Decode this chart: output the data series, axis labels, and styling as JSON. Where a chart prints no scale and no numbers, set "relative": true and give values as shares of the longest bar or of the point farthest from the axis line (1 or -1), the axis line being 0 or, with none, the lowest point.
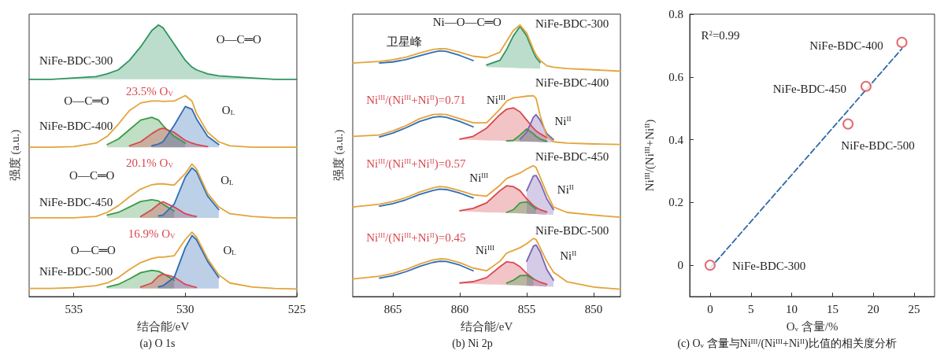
{
  "chart_data": [
    {
      "type": "line",
      "relative": true,
      "title": "(a) O 1s",
      "xlabel": "结合能/eV",
      "ylabel": "强度 (a.u.)",
      "tick_labels": "x",
      "xlim": [
        537,
        525
      ],
      "xticks": [
        535,
        530,
        525
      ],
      "x": [
        537,
        536,
        535,
        534,
        533.5,
        533,
        532.5,
        532,
        531.5,
        531.2,
        531,
        530.5,
        530,
        529.7,
        529.5,
        529,
        528.5,
        528,
        527,
        526,
        525
      ],
      "series": [
        {
          "color": "#2f9460",
          "values": [
            0.8,
            0.8,
            0.805,
            0.81,
            0.82,
            0.835,
            0.87,
            0.92,
            0.98,
            1.0,
            0.99,
            0.93,
            0.87,
            0.845,
            0.835,
            0.82,
            0.813,
            0.81,
            0.805,
            0.8,
            0.8
          ],
          "lower": [
            0.8,
            0.8,
            0.8,
            0.8,
            0.8,
            0.8,
            0.8,
            0.8,
            0.8,
            0.8,
            0.8,
            0.8,
            0.8,
            0.8,
            0.8,
            0.8,
            0.8,
            0.8,
            0.8,
            0.8,
            0.8
          ],
          "upper": [
            0.8,
            0.8,
            0.805,
            0.81,
            0.82,
            0.835,
            0.87,
            0.92,
            0.98,
            1.0,
            0.99,
            0.93,
            0.87,
            0.845,
            0.835,
            0.82,
            0.813,
            0.81,
            0.805,
            0.8,
            0.8
          ]
        },
        {
          "color": "#3c9a46",
          "values": [
            null,
            null,
            null,
            null,
            0.56,
            0.58,
            0.615,
            0.65,
            0.66,
            0.65,
            0.63,
            0.59,
            0.565,
            null,
            null,
            null,
            null,
            null,
            null,
            null,
            null
          ],
          "lower": [
            null,
            null,
            null,
            null,
            0.55,
            0.55,
            0.55,
            0.55,
            0.55,
            0.55,
            0.55,
            0.55,
            0.55,
            null,
            null,
            null,
            null,
            null,
            null,
            null,
            null
          ],
          "upper": [
            null,
            null,
            null,
            null,
            0.56,
            0.58,
            0.615,
            0.65,
            0.66,
            0.65,
            0.63,
            0.59,
            0.565,
            null,
            null,
            null,
            null,
            null,
            null,
            null,
            null
          ]
        },
        {
          "color": "#d9474f",
          "values": [
            null,
            null,
            null,
            null,
            null,
            null,
            0.555,
            0.57,
            0.6,
            0.615,
            0.62,
            0.605,
            0.575,
            0.565,
            0.56,
            0.552,
            null,
            null,
            null,
            null,
            null
          ],
          "lower": [
            null,
            null,
            null,
            null,
            null,
            null,
            0.55,
            0.55,
            0.55,
            0.55,
            0.55,
            0.55,
            0.55,
            0.55,
            0.55,
            0.55,
            null,
            null,
            null,
            null,
            null
          ],
          "upper": [
            null,
            null,
            null,
            null,
            null,
            null,
            0.555,
            0.57,
            0.6,
            0.615,
            0.62,
            0.605,
            0.575,
            0.565,
            0.56,
            0.552,
            null,
            null,
            null,
            null,
            null
          ]
        },
        {
          "color": "#2f6db4",
          "values": [
            null,
            null,
            null,
            null,
            null,
            null,
            null,
            null,
            0.555,
            0.562,
            0.57,
            0.63,
            0.7,
            0.69,
            0.655,
            0.59,
            0.56,
            null,
            null,
            null,
            null
          ],
          "lower": [
            null,
            null,
            null,
            null,
            null,
            null,
            null,
            null,
            0.55,
            0.55,
            0.55,
            0.55,
            0.55,
            0.55,
            0.55,
            0.55,
            0.55,
            null,
            null,
            null,
            null
          ],
          "upper": [
            null,
            null,
            null,
            null,
            null,
            null,
            null,
            null,
            0.555,
            0.562,
            0.57,
            0.63,
            0.7,
            0.69,
            0.655,
            0.59,
            0.56,
            null,
            null,
            null,
            null
          ]
        },
        {
          "color": "#e3a33b",
          "values": [
            0.55,
            0.55,
            0.552,
            0.565,
            0.59,
            0.635,
            0.685,
            0.713,
            0.72,
            0.72,
            0.719,
            0.72,
            0.74,
            0.72,
            0.675,
            0.605,
            0.57,
            0.555,
            0.55,
            0.55,
            0.55
          ]
        },
        {
          "color": "#3e9c48",
          "values": [
            null,
            null,
            null,
            null,
            0.3,
            0.31,
            0.33,
            0.35,
            0.357,
            0.352,
            0.34,
            0.315,
            null,
            null,
            null,
            null,
            null,
            null,
            null,
            null,
            null
          ],
          "lower": [
            null,
            null,
            null,
            null,
            0.29,
            0.29,
            0.29,
            0.29,
            0.29,
            0.29,
            0.29,
            0.29,
            null,
            null,
            null,
            null,
            null,
            null,
            null,
            null,
            null
          ],
          "upper": [
            null,
            null,
            null,
            null,
            0.3,
            0.31,
            0.33,
            0.35,
            0.357,
            0.352,
            0.34,
            0.315,
            null,
            null,
            null,
            null,
            null,
            null,
            null,
            null,
            null
          ]
        },
        {
          "color": "#d7464e",
          "values": [
            null,
            null,
            null,
            null,
            null,
            null,
            null,
            0.295,
            0.32,
            0.34,
            0.349,
            0.33,
            0.305,
            0.298,
            0.295,
            null,
            null,
            null,
            null,
            null,
            null
          ],
          "lower": [
            null,
            null,
            null,
            null,
            null,
            null,
            null,
            0.29,
            0.29,
            0.29,
            0.29,
            0.29,
            0.29,
            0.29,
            0.29,
            null,
            null,
            null,
            null,
            null,
            null
          ],
          "upper": [
            null,
            null,
            null,
            null,
            null,
            null,
            null,
            0.295,
            0.32,
            0.34,
            0.349,
            0.33,
            0.305,
            0.298,
            0.295,
            null,
            null,
            null,
            null,
            null,
            null
          ]
        },
        {
          "color": "#3070b6",
          "values": [
            null,
            null,
            null,
            null,
            null,
            null,
            null,
            null,
            null,
            0.297,
            0.3,
            0.34,
            0.44,
            0.474,
            0.46,
            0.37,
            0.32,
            null,
            null,
            null,
            null
          ],
          "lower": [
            null,
            null,
            null,
            null,
            null,
            null,
            null,
            null,
            null,
            0.29,
            0.29,
            0.29,
            0.29,
            0.29,
            0.29,
            0.29,
            0.29,
            null,
            null,
            null,
            null
          ],
          "upper": [
            null,
            null,
            null,
            null,
            null,
            null,
            null,
            null,
            null,
            0.297,
            0.3,
            0.34,
            0.44,
            0.474,
            0.46,
            0.37,
            0.32,
            null,
            null,
            null,
            null
          ]
        },
        {
          "color": "#e3a33b",
          "values": [
            0.29,
            0.29,
            0.29,
            0.295,
            0.31,
            0.335,
            0.367,
            0.396,
            0.412,
            0.415,
            0.415,
            0.41,
            0.453,
            0.488,
            0.47,
            0.38,
            0.33,
            0.305,
            0.295,
            0.29,
            0.29
          ]
        },
        {
          "color": "#3a9844",
          "values": [
            null,
            null,
            null,
            null,
            0.035,
            0.045,
            0.065,
            0.088,
            0.097,
            0.093,
            0.085,
            0.06,
            null,
            null,
            null,
            null,
            null,
            null,
            null,
            null,
            null
          ],
          "lower": [
            null,
            null,
            null,
            null,
            0.03,
            0.03,
            0.03,
            0.03,
            0.03,
            0.03,
            0.03,
            0.03,
            null,
            null,
            null,
            null,
            null,
            null,
            null,
            null,
            null
          ],
          "upper": [
            null,
            null,
            null,
            null,
            0.035,
            0.045,
            0.065,
            0.088,
            0.097,
            0.093,
            0.085,
            0.06,
            null,
            null,
            null,
            null,
            null,
            null,
            null,
            null,
            null
          ]
        },
        {
          "color": "#db4951",
          "values": [
            null,
            null,
            null,
            null,
            null,
            null,
            null,
            0.035,
            0.05,
            0.075,
            0.083,
            0.072,
            0.045,
            0.038,
            0.034,
            null,
            null,
            null,
            null,
            null,
            null
          ],
          "lower": [
            null,
            null,
            null,
            null,
            null,
            null,
            null,
            0.03,
            0.03,
            0.03,
            0.03,
            0.03,
            0.03,
            0.03,
            0.03,
            null,
            null,
            null,
            null,
            null,
            null
          ],
          "upper": [
            null,
            null,
            null,
            null,
            null,
            null,
            null,
            0.035,
            0.05,
            0.075,
            0.083,
            0.072,
            0.045,
            0.038,
            0.034,
            null,
            null,
            null,
            null,
            null,
            null
          ]
        },
        {
          "color": "#2e6bb2",
          "values": [
            null,
            null,
            null,
            null,
            null,
            null,
            null,
            null,
            null,
            0.036,
            0.04,
            0.07,
            0.18,
            0.225,
            0.21,
            0.13,
            0.07,
            null,
            null,
            null,
            null
          ],
          "lower": [
            null,
            null,
            null,
            null,
            null,
            null,
            null,
            null,
            null,
            0.03,
            0.03,
            0.03,
            0.03,
            0.03,
            0.03,
            0.03,
            0.03,
            null,
            null,
            null,
            null
          ],
          "upper": [
            null,
            null,
            null,
            null,
            null,
            null,
            null,
            null,
            null,
            0.036,
            0.04,
            0.07,
            0.18,
            0.225,
            0.21,
            0.13,
            0.07,
            null,
            null,
            null,
            null
          ]
        },
        {
          "color": "#e3a33b",
          "values": [
            0.03,
            0.03,
            0.033,
            0.04,
            0.05,
            0.07,
            0.1,
            0.125,
            0.14,
            0.145,
            0.145,
            0.15,
            0.21,
            0.237,
            0.22,
            0.14,
            0.08,
            0.05,
            0.035,
            0.03,
            0.028
          ]
        }
      ],
      "annotations": [
        "NiFe-BDC-300",
        "O—C═O",
        "NiFe-BDC-400",
        "O—C═O",
        "23.5% O$_{V}$",
        "O$_{L}$",
        "NiFe-BDC-450",
        "O—C═O",
        "20.1% O$_{V}$",
        "O$_{L}$",
        "NiFe-BDC-500",
        "O—C═O",
        "16.9% O$_{V}$",
        "O$_{L}$"
      ]
    },
    {
      "type": "line",
      "relative": true,
      "title": "(b) Ni 2p",
      "xlabel": "结合能/eV",
      "ylabel": "强度 (a.u.)",
      "tick_labels": "x",
      "xlim": [
        868,
        848
      ],
      "xticks": [
        865,
        860,
        855,
        850
      ],
      "x": [
        868,
        866,
        865,
        864,
        863,
        862,
        861.5,
        861,
        860,
        859,
        858,
        857,
        856.5,
        856,
        855.5,
        855,
        854.5,
        854.3,
        854,
        853.5,
        853,
        852,
        850,
        848
      ],
      "series": [
        {
          "color": "#2f9460",
          "values": [
            null,
            null,
            null,
            null,
            null,
            null,
            null,
            null,
            null,
            null,
            0.853,
            0.87,
            0.91,
            0.96,
            0.995,
            0.96,
            0.9,
            0.88,
            0.862,
            null,
            null,
            null,
            null,
            null
          ],
          "lower": [
            null,
            null,
            null,
            null,
            null,
            null,
            null,
            null,
            null,
            null,
            0.845,
            0.844,
            0.843,
            0.842,
            0.841,
            0.841,
            0.84,
            0.84,
            0.839,
            null,
            null,
            null,
            null,
            null
          ],
          "upper": [
            null,
            null,
            null,
            null,
            null,
            null,
            null,
            null,
            null,
            null,
            0.853,
            0.87,
            0.91,
            0.96,
            0.995,
            0.96,
            0.9,
            0.88,
            0.862,
            null,
            null,
            null,
            null,
            null
          ]
        },
        {
          "color": "#2f6db4",
          "values": [
            null,
            0.86,
            0.864,
            0.873,
            0.887,
            0.9,
            0.905,
            0.903,
            0.888,
            0.869,
            null,
            null,
            null,
            null,
            null,
            null,
            null,
            null,
            null,
            null,
            null,
            null,
            null,
            null
          ]
        },
        {
          "color": "#e3a33b",
          "values": [
            0.86,
            0.866,
            0.872,
            0.882,
            0.897,
            0.91,
            0.913,
            0.912,
            0.9,
            0.885,
            0.88,
            0.9,
            0.94,
            0.98,
            1.0,
            0.97,
            0.91,
            0.89,
            0.87,
            0.85,
            0.845,
            0.84,
            0.835,
            0.83
          ]
        },
        {
          "color": "#d9474f",
          "values": [
            null,
            null,
            null,
            null,
            null,
            null,
            null,
            null,
            0.58,
            0.59,
            0.62,
            0.67,
            0.69,
            0.695,
            0.68,
            0.65,
            0.62,
            0.61,
            0.6,
            0.585,
            null,
            null,
            null,
            null
          ],
          "lower": [
            null,
            null,
            null,
            null,
            null,
            null,
            null,
            null,
            0.578,
            0.577,
            0.575,
            0.574,
            0.573,
            0.572,
            0.571,
            0.571,
            0.57,
            0.57,
            0.569,
            0.568,
            null,
            null,
            null,
            null
          ],
          "upper": [
            null,
            null,
            null,
            null,
            null,
            null,
            null,
            null,
            0.58,
            0.59,
            0.62,
            0.67,
            0.69,
            0.695,
            0.68,
            0.65,
            0.62,
            0.61,
            0.6,
            0.585,
            null,
            null,
            null,
            null
          ]
        },
        {
          "color": "#3c9a46",
          "values": [
            null,
            null,
            null,
            null,
            null,
            null,
            null,
            null,
            null,
            null,
            null,
            null,
            0.573,
            0.575,
            0.595,
            0.617,
            0.6,
            0.59,
            0.58,
            0.572,
            null,
            null,
            null,
            null
          ],
          "lower": [
            null,
            null,
            null,
            null,
            null,
            null,
            null,
            null,
            null,
            null,
            null,
            null,
            0.573,
            0.572,
            0.571,
            0.571,
            0.57,
            0.57,
            0.569,
            0.568,
            null,
            null,
            null,
            null
          ],
          "upper": [
            null,
            null,
            null,
            null,
            null,
            null,
            null,
            null,
            null,
            null,
            null,
            null,
            0.573,
            0.575,
            0.595,
            0.617,
            0.6,
            0.59,
            0.58,
            0.572,
            null,
            null,
            null,
            null
          ]
        },
        {
          "color": "#7b62b3",
          "values": [
            null,
            null,
            null,
            null,
            null,
            null,
            null,
            null,
            null,
            null,
            null,
            null,
            null,
            null,
            0.58,
            0.605,
            0.66,
            0.67,
            0.65,
            0.6,
            0.578,
            null,
            null,
            null
          ],
          "lower": [
            null,
            null,
            null,
            null,
            null,
            null,
            null,
            null,
            null,
            null,
            null,
            null,
            null,
            null,
            0.571,
            0.571,
            0.57,
            0.57,
            0.569,
            0.568,
            0.568,
            null,
            null,
            null
          ],
          "upper": [
            null,
            null,
            null,
            null,
            null,
            null,
            null,
            null,
            null,
            null,
            null,
            null,
            null,
            null,
            0.58,
            0.605,
            0.66,
            0.67,
            0.65,
            0.6,
            0.578,
            null,
            null,
            null
          ]
        },
        {
          "color": "#2f6db4",
          "values": [
            null,
            0.588,
            0.602,
            0.622,
            0.645,
            0.66,
            0.663,
            0.66,
            0.645,
            0.625,
            null,
            null,
            null,
            null,
            null,
            null,
            null,
            null,
            null,
            null,
            null,
            null,
            null,
            null
          ]
        },
        {
          "color": "#e3a33b",
          "values": [
            0.59,
            0.595,
            0.61,
            0.63,
            0.655,
            0.67,
            0.672,
            0.67,
            0.655,
            0.64,
            0.64,
            0.69,
            0.72,
            0.732,
            0.735,
            0.738,
            0.74,
            0.73,
            0.667,
            0.59,
            0.57,
            0.565,
            0.562,
            0.56
          ]
        },
        {
          "color": "#d7464e",
          "values": [
            null,
            null,
            null,
            null,
            null,
            null,
            null,
            null,
            0.316,
            0.325,
            0.345,
            0.39,
            0.408,
            0.405,
            0.39,
            0.36,
            0.335,
            0.328,
            0.32,
            0.312,
            null,
            null,
            null,
            null
          ],
          "lower": [
            null,
            null,
            null,
            null,
            null,
            null,
            null,
            null,
            0.314,
            0.312,
            0.31,
            0.309,
            0.308,
            0.307,
            0.306,
            0.305,
            0.304,
            0.304,
            0.303,
            0.302,
            null,
            null,
            null,
            null
          ],
          "upper": [
            null,
            null,
            null,
            null,
            null,
            null,
            null,
            null,
            0.316,
            0.325,
            0.345,
            0.39,
            0.408,
            0.405,
            0.39,
            0.36,
            0.335,
            0.328,
            0.32,
            0.312,
            null,
            null,
            null,
            null
          ]
        },
        {
          "color": "#3e9c48",
          "values": [
            null,
            null,
            null,
            null,
            null,
            null,
            null,
            null,
            null,
            null,
            null,
            null,
            0.31,
            0.32,
            0.345,
            0.349,
            0.33,
            0.322,
            null,
            null,
            null,
            null,
            null,
            null
          ],
          "lower": [
            null,
            null,
            null,
            null,
            null,
            null,
            null,
            null,
            null,
            null,
            null,
            null,
            0.308,
            0.307,
            0.306,
            0.305,
            0.304,
            0.304,
            null,
            null,
            null,
            null,
            null,
            null
          ],
          "upper": [
            null,
            null,
            null,
            null,
            null,
            null,
            null,
            null,
            null,
            null,
            null,
            null,
            0.31,
            0.32,
            0.345,
            0.349,
            0.33,
            0.322,
            null,
            null,
            null,
            null,
            null,
            null
          ]
        },
        {
          "color": "#7d64b5",
          "values": [
            null,
            null,
            null,
            null,
            null,
            null,
            null,
            null,
            null,
            null,
            null,
            null,
            null,
            null,
            null,
            0.39,
            0.444,
            0.446,
            0.42,
            0.36,
            0.32,
            null,
            null,
            null
          ],
          "lower": [
            null,
            null,
            null,
            null,
            null,
            null,
            null,
            null,
            null,
            null,
            null,
            null,
            null,
            null,
            null,
            0.305,
            0.304,
            0.304,
            0.303,
            0.302,
            0.301,
            null,
            null,
            null
          ],
          "upper": [
            null,
            null,
            null,
            null,
            null,
            null,
            null,
            null,
            null,
            null,
            null,
            null,
            null,
            null,
            null,
            0.39,
            0.444,
            0.446,
            0.42,
            0.36,
            0.32,
            null,
            null,
            null
          ]
        },
        {
          "color": "#2f6db4",
          "values": [
            null,
            0.333,
            0.342,
            0.357,
            0.376,
            0.391,
            0.396,
            0.394,
            0.381,
            0.363,
            null,
            null,
            null,
            null,
            null,
            null,
            null,
            null,
            null,
            null,
            null,
            null,
            null,
            null
          ]
        },
        {
          "color": "#e3a33b",
          "values": [
            0.33,
            0.34,
            0.35,
            0.365,
            0.385,
            0.4,
            0.405,
            0.403,
            0.39,
            0.375,
            0.37,
            0.41,
            0.435,
            0.445,
            0.455,
            0.47,
            0.482,
            0.475,
            0.44,
            0.38,
            0.33,
            0.31,
            0.3,
            0.292
          ]
        },
        {
          "color": "#db4951",
          "values": [
            null,
            null,
            null,
            null,
            null,
            null,
            null,
            null,
            0.05,
            0.055,
            0.07,
            0.11,
            0.128,
            0.125,
            0.11,
            0.085,
            0.065,
            0.06,
            0.053,
            0.045,
            null,
            null,
            null,
            null
          ],
          "lower": [
            null,
            null,
            null,
            null,
            null,
            null,
            null,
            null,
            0.049,
            0.047,
            0.045,
            0.044,
            0.043,
            0.042,
            0.041,
            0.04,
            0.039,
            0.039,
            0.038,
            0.037,
            null,
            null,
            null,
            null
          ],
          "upper": [
            null,
            null,
            null,
            null,
            null,
            null,
            null,
            null,
            0.05,
            0.055,
            0.07,
            0.11,
            0.128,
            0.125,
            0.11,
            0.085,
            0.065,
            0.06,
            0.053,
            0.045,
            null,
            null,
            null,
            null
          ]
        },
        {
          "color": "#3a9844",
          "values": [
            null,
            null,
            null,
            null,
            null,
            null,
            null,
            null,
            null,
            null,
            null,
            null,
            0.05,
            0.06,
            0.077,
            0.078,
            0.065,
            null,
            null,
            null,
            null,
            null,
            null,
            null
          ],
          "lower": [
            null,
            null,
            null,
            null,
            null,
            null,
            null,
            null,
            null,
            null,
            null,
            null,
            0.043,
            0.042,
            0.041,
            0.04,
            0.039,
            null,
            null,
            null,
            null,
            null,
            null,
            null
          ],
          "upper": [
            null,
            null,
            null,
            null,
            null,
            null,
            null,
            null,
            null,
            null,
            null,
            null,
            0.05,
            0.06,
            0.077,
            0.078,
            0.065,
            null,
            null,
            null,
            null,
            null,
            null,
            null
          ]
        },
        {
          "color": "#7960b1",
          "values": [
            null,
            null,
            null,
            null,
            null,
            null,
            null,
            null,
            null,
            null,
            null,
            null,
            null,
            null,
            null,
            0.13,
            0.186,
            0.19,
            0.165,
            0.1,
            0.06,
            null,
            null,
            null
          ],
          "lower": [
            null,
            null,
            null,
            null,
            null,
            null,
            null,
            null,
            null,
            null,
            null,
            null,
            null,
            null,
            null,
            0.04,
            0.039,
            0.039,
            0.038,
            0.037,
            0.036,
            null,
            null,
            null
          ],
          "upper": [
            null,
            null,
            null,
            null,
            null,
            null,
            null,
            null,
            null,
            null,
            null,
            null,
            null,
            null,
            null,
            0.13,
            0.186,
            0.19,
            0.165,
            0.1,
            0.06,
            null,
            null,
            null
          ]
        },
        {
          "color": "#2f6db4",
          "values": [
            null,
            0.068,
            0.077,
            0.092,
            0.111,
            0.126,
            0.13,
            0.129,
            0.116,
            0.095,
            null,
            null,
            null,
            null,
            null,
            null,
            null,
            null,
            null,
            null,
            null,
            null,
            null,
            null
          ]
        },
        {
          "color": "#e3a33b",
          "values": [
            0.065,
            0.075,
            0.085,
            0.1,
            0.12,
            0.135,
            0.139,
            0.138,
            0.125,
            0.105,
            0.095,
            0.13,
            0.16,
            0.17,
            0.18,
            0.195,
            0.214,
            0.21,
            0.18,
            0.13,
            0.09,
            0.055,
            0.035,
            0.027
          ]
        }
      ],
      "annotations": [
        "Ni—O—C═O",
        "NiFe-BDC-300",
        "卫星峰",
        "NiFe-BDC-400",
        "Ni$^{III}$/(Ni$^{III}$+Ni$^{II}$)=0.71",
        "Ni$^{III}$",
        "Ni$^{II}$",
        "NiFe-BDC-450",
        "Ni$^{III}$/(Ni$^{III}$+Ni$^{II}$)=0.57",
        "Ni$^{III}$",
        "Ni$^{II}$",
        "NiFe-BDC-500",
        "Ni$^{III}$/(Ni$^{III}$+Ni$^{II}$)=0.45",
        "Ni$^{III}$",
        "Ni$^{II}$"
      ]
    },
    {
      "type": "scatter",
      "title": "(c) O$_{v}$ 含量与Ni$^{III}$/(Ni$^{III}$+Ni$^{II}$)比值的相关度分析",
      "xlabel": "O$_{v}$ 含量/%",
      "ylabel": "Ni$^{III}$/(Ni$^{III}$+Ni$^{II}$)",
      "xlim": [
        -2.5,
        27.5
      ],
      "xticks": [
        0,
        5,
        10,
        15,
        20,
        25
      ],
      "ylim": [
        -0.1,
        0.8
      ],
      "yticks": [
        0,
        0.2,
        0.4,
        0.6,
        0.8
      ],
      "series": [
        {
          "type": "line",
          "color": "#2e6aa8",
          "line_style": "dashed",
          "x": [
            0,
            23.5
          ],
          "values": [
            -0.01,
            0.69
          ]
        },
        {
          "color": "#d9474f",
          "marker": "circle",
          "x": [
            0,
            23.5,
            19.1,
            16.9
          ],
          "values": [
            0,
            0.71,
            0.57,
            0.45
          ]
        }
      ],
      "annotations": [
        "R$^{2}$=0.99",
        "NiFe-BDC-300",
        "NiFe-BDC-400",
        "NiFe-BDC-450",
        "NiFe-BDC-500"
      ]
    }
  ]
}
